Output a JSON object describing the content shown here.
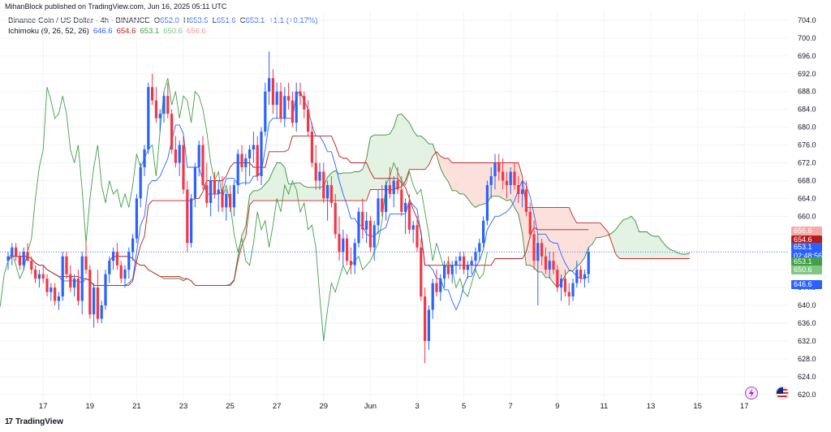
{
  "publisher": "MihanBlock published on TradingView.com, Jun 16, 2025 05:11 UTC",
  "legend": {
    "symbol": "Binance Coin / US Dollar · 4h · BINANCE",
    "o_label": "O",
    "o": "652.0",
    "h_label": "H",
    "h": "653.5",
    "l_label": "L",
    "l": "651.6",
    "c_label": "C",
    "c": "653.1",
    "change": "+1.1 (+0.17%)",
    "indicator": "Ichimoku (9, 26, 52, 26)",
    "ind_values": [
      "646.6",
      "654.6",
      "653.1",
      "650.6",
      "656.6"
    ]
  },
  "footer": {
    "brand": "TradingView"
  },
  "colors": {
    "up": "#2962ff",
    "down": "#f23645",
    "conversion": "#2962ff",
    "base": "#b71c1c",
    "lagging": "#43a047",
    "spanA": "#388e3c",
    "spanB": "#c62828",
    "cloud_green": "#e3f2e3",
    "cloud_red": "#fbe0dc"
  },
  "price_tags": [
    {
      "label": "656.6",
      "value": 656.6,
      "color": "#f7a8a8"
    },
    {
      "label": "654.6",
      "value": 654.6,
      "color": "#b71c1c"
    },
    {
      "label": "653.1",
      "value": 653.1,
      "color": "#2962ff"
    },
    {
      "label": "02:48:56",
      "value": 651.0,
      "color": "#2962ff"
    },
    {
      "label": "653.1",
      "value": 649.7,
      "color": "#43a047"
    },
    {
      "label": "650.6",
      "value": 647.9,
      "color": "#81c784"
    },
    {
      "label": "646.6",
      "value": 644.6,
      "color": "#2962ff"
    }
  ],
  "chart_data": {
    "type": "candlestick",
    "ylim": [
      618.5,
      706
    ],
    "yticks": [
      620,
      624,
      628,
      632,
      636,
      640,
      644,
      648,
      652,
      656,
      660,
      664,
      668,
      672,
      676,
      680,
      684,
      688,
      692,
      696,
      700,
      704
    ],
    "ytick_labels": [
      "620.0",
      "624.0",
      "628.0",
      "632.0",
      "636.0",
      "640.0",
      "644.0",
      "648.0",
      "652.0",
      "656.0",
      "660.0",
      "664.0",
      "668.0",
      "672.0",
      "676.0",
      "680.0",
      "684.0",
      "688.0",
      "692.0",
      "696.0",
      "700.0",
      "704.0"
    ],
    "xlabels": [
      "17",
      "19",
      "21",
      "23",
      "25",
      "27",
      "29",
      "Jun",
      "3",
      "5",
      "7",
      "9",
      "11",
      "13",
      "15",
      "17"
    ],
    "xlabel_bars": [
      9,
      21,
      33,
      45,
      57,
      69,
      81,
      93,
      105,
      117,
      129,
      141,
      153,
      165,
      177,
      189
    ],
    "bar_count": 190,
    "candles": [
      [
        650,
        652,
        648,
        651
      ],
      [
        651,
        654,
        649,
        653
      ],
      [
        653,
        654,
        650,
        651
      ],
      [
        651,
        652,
        648,
        649
      ],
      [
        649,
        653,
        648,
        652
      ],
      [
        652,
        654,
        650,
        650
      ],
      [
        650,
        651,
        647,
        648
      ],
      [
        648,
        649,
        645,
        646
      ],
      [
        646,
        648,
        644,
        647
      ],
      [
        647,
        649,
        645,
        646
      ],
      [
        646,
        647,
        642,
        643
      ],
      [
        643,
        645,
        641,
        644
      ],
      [
        644,
        645,
        640,
        641
      ],
      [
        641,
        643,
        639,
        642
      ],
      [
        642,
        652,
        641,
        651
      ],
      [
        651,
        652,
        646,
        647
      ],
      [
        647,
        649,
        643,
        644
      ],
      [
        644,
        647,
        642,
        646
      ],
      [
        646,
        648,
        640,
        641
      ],
      [
        641,
        652,
        638,
        651
      ],
      [
        651,
        654,
        647,
        648
      ],
      [
        648,
        649,
        637,
        638
      ],
      [
        638,
        645,
        635,
        644
      ],
      [
        644,
        648,
        636,
        637
      ],
      [
        637,
        641,
        636,
        640
      ],
      [
        640,
        648,
        639,
        647
      ],
      [
        647,
        651,
        645,
        650
      ],
      [
        650,
        653,
        648,
        652
      ],
      [
        652,
        654,
        648,
        649
      ],
      [
        649,
        650,
        645,
        646
      ],
      [
        646,
        649,
        644,
        648
      ],
      [
        648,
        653,
        646,
        652
      ],
      [
        652,
        656,
        650,
        655
      ],
      [
        655,
        665,
        654,
        664
      ],
      [
        664,
        672,
        662,
        671
      ],
      [
        671,
        676,
        669,
        675
      ],
      [
        675,
        690,
        674,
        689
      ],
      [
        689,
        692,
        685,
        686
      ],
      [
        686,
        689,
        681,
        682
      ],
      [
        682,
        684,
        679,
        683
      ],
      [
        683,
        688,
        681,
        687
      ],
      [
        687,
        690,
        682,
        683
      ],
      [
        683,
        684,
        674,
        675
      ],
      [
        675,
        678,
        671,
        672
      ],
      [
        672,
        677,
        669,
        676
      ],
      [
        676,
        678,
        665,
        666
      ],
      [
        666,
        668,
        652,
        654
      ],
      [
        654,
        665,
        653,
        664
      ],
      [
        664,
        672,
        662,
        671
      ],
      [
        671,
        677,
        669,
        676
      ],
      [
        676,
        678,
        666,
        667
      ],
      [
        667,
        672,
        662,
        663
      ],
      [
        663,
        669,
        660,
        668
      ],
      [
        668,
        670,
        664,
        665
      ],
      [
        665,
        668,
        661,
        666
      ],
      [
        666,
        669,
        661,
        662
      ],
      [
        662,
        666,
        659,
        665
      ],
      [
        665,
        667,
        661,
        662
      ],
      [
        662,
        668,
        660,
        667
      ],
      [
        667,
        675,
        665,
        674
      ],
      [
        674,
        676,
        670,
        671
      ],
      [
        671,
        674,
        667,
        673
      ],
      [
        673,
        676,
        669,
        675
      ],
      [
        675,
        679,
        672,
        676
      ],
      [
        676,
        678,
        668,
        669
      ],
      [
        669,
        680,
        667,
        679
      ],
      [
        679,
        690,
        678,
        688
      ],
      [
        688,
        697,
        685,
        691
      ],
      [
        691,
        693,
        683,
        685
      ],
      [
        685,
        690,
        682,
        688
      ],
      [
        688,
        690,
        681,
        682
      ],
      [
        682,
        689,
        680,
        687
      ],
      [
        687,
        690,
        684,
        686
      ],
      [
        686,
        688,
        680,
        681
      ],
      [
        681,
        690,
        679,
        688
      ],
      [
        688,
        690,
        685,
        687
      ],
      [
        687,
        688,
        682,
        684
      ],
      [
        684,
        686,
        678,
        679
      ],
      [
        679,
        681,
        671,
        672
      ],
      [
        672,
        676,
        666,
        668
      ],
      [
        668,
        672,
        666,
        670
      ],
      [
        670,
        672,
        663,
        664
      ],
      [
        664,
        668,
        659,
        667
      ],
      [
        667,
        669,
        662,
        663
      ],
      [
        663,
        665,
        655,
        656
      ],
      [
        656,
        660,
        650,
        652
      ],
      [
        652,
        657,
        649,
        655
      ],
      [
        655,
        656,
        649,
        650
      ],
      [
        650,
        653,
        647,
        649
      ],
      [
        649,
        655,
        647,
        654
      ],
      [
        654,
        662,
        653,
        661
      ],
      [
        661,
        664,
        655,
        657
      ],
      [
        657,
        661,
        654,
        659
      ],
      [
        659,
        660,
        652,
        653
      ],
      [
        653,
        659,
        650,
        658
      ],
      [
        658,
        666,
        656,
        664
      ],
      [
        664,
        667,
        660,
        661
      ],
      [
        661,
        668,
        659,
        667
      ],
      [
        667,
        671,
        664,
        665
      ],
      [
        665,
        669,
        662,
        668
      ],
      [
        668,
        671,
        665,
        666
      ],
      [
        666,
        669,
        660,
        661
      ],
      [
        661,
        664,
        656,
        663
      ],
      [
        663,
        665,
        656,
        657
      ],
      [
        657,
        659,
        654,
        658
      ],
      [
        658,
        660,
        652,
        653
      ],
      [
        653,
        655,
        641,
        642
      ],
      [
        642,
        644,
        627,
        632
      ],
      [
        632,
        640,
        630,
        639
      ],
      [
        639,
        646,
        637,
        645
      ],
      [
        645,
        648,
        642,
        643
      ],
      [
        643,
        647,
        641,
        646
      ],
      [
        646,
        650,
        644,
        649
      ],
      [
        649,
        651,
        646,
        647
      ],
      [
        647,
        650,
        645,
        649
      ],
      [
        649,
        651,
        647,
        650
      ],
      [
        650,
        652,
        648,
        651
      ],
      [
        651,
        652,
        647,
        648
      ],
      [
        648,
        650,
        646,
        649
      ],
      [
        649,
        651,
        647,
        650
      ],
      [
        650,
        653,
        648,
        652
      ],
      [
        652,
        655,
        650,
        654
      ],
      [
        654,
        660,
        653,
        659
      ],
      [
        659,
        668,
        658,
        667
      ],
      [
        667,
        671,
        664,
        669
      ],
      [
        669,
        674,
        666,
        672
      ],
      [
        672,
        674,
        668,
        670
      ],
      [
        670,
        673,
        666,
        668
      ],
      [
        668,
        670,
        664,
        667
      ],
      [
        667,
        671,
        665,
        670
      ],
      [
        670,
        672,
        666,
        667
      ],
      [
        667,
        669,
        663,
        665
      ],
      [
        665,
        668,
        662,
        666
      ],
      [
        666,
        668,
        660,
        661
      ],
      [
        661,
        663,
        655,
        656
      ],
      [
        656,
        659,
        648,
        650
      ],
      [
        650,
        656,
        640,
        654
      ],
      [
        654,
        655,
        649,
        651
      ],
      [
        651,
        653,
        647,
        648
      ],
      [
        648,
        652,
        646,
        650
      ],
      [
        650,
        652,
        647,
        648
      ],
      [
        648,
        649,
        643,
        644
      ],
      [
        644,
        647,
        641,
        646
      ],
      [
        646,
        648,
        642,
        643
      ],
      [
        643,
        645,
        640,
        642
      ],
      [
        642,
        646,
        641,
        645
      ],
      [
        645,
        650,
        644,
        648
      ],
      [
        648,
        649,
        645,
        646
      ],
      [
        646,
        648,
        644,
        647
      ],
      [
        647,
        653,
        645,
        652
      ]
    ]
  }
}
